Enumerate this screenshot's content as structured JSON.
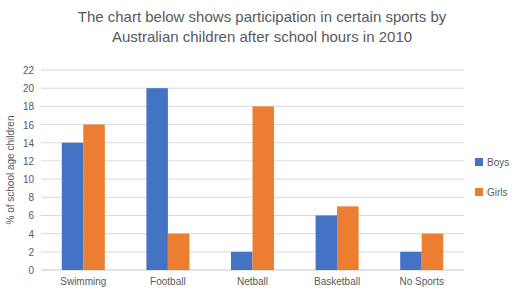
{
  "chart_data": {
    "type": "bar",
    "title": "The chart below shows participation in certain sports by Australian children after school hours in 2010",
    "y_label": "% of school age children",
    "categories": [
      "Swimming",
      "Football",
      "Netball",
      "Basketball",
      "No Sports"
    ],
    "series": [
      {
        "name": "Boys",
        "color": "#4472c4",
        "values": [
          14,
          20,
          2,
          6,
          2
        ]
      },
      {
        "name": "Girls",
        "color": "#ed7d31",
        "values": [
          16,
          4,
          18,
          7,
          4
        ]
      }
    ],
    "ylim": [
      0,
      22
    ],
    "yticks": [
      0,
      2,
      4,
      6,
      8,
      10,
      12,
      14,
      16,
      18,
      20,
      22
    ],
    "grid": true,
    "legend": "right"
  }
}
